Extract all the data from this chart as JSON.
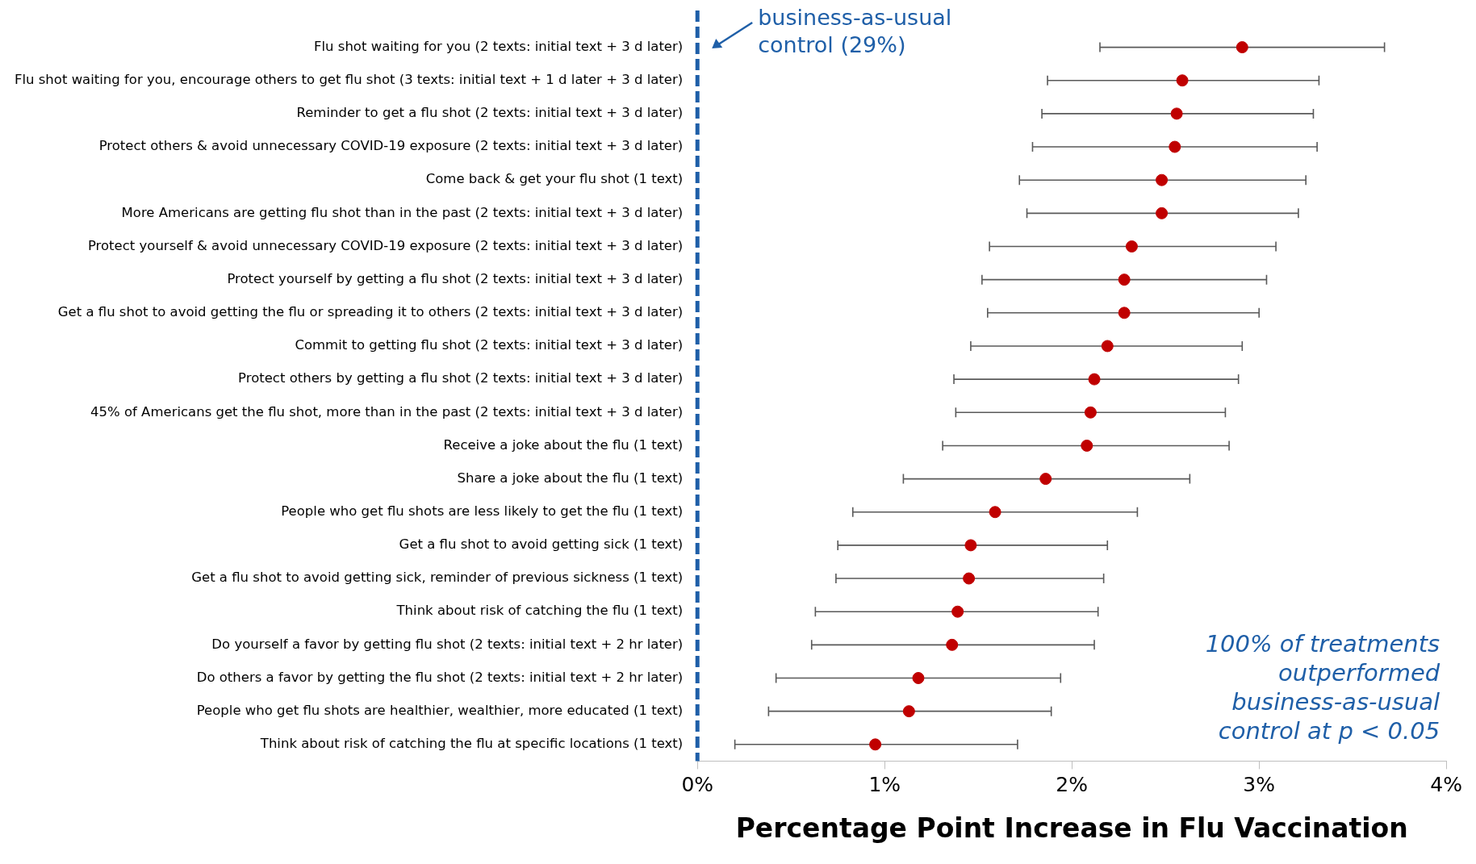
{
  "chart_data": {
    "type": "scatter",
    "orientation": "horizontal",
    "xlabel": "Percentage Point Increase in Flu Vaccination",
    "categories": [
      "Flu shot waiting for you (2 texts: initial text + 3 d later)",
      "Flu shot waiting for you, encourage others to get flu shot (3 texts: initial text + 1 d later + 3 d later)",
      "Reminder to get a flu shot (2 texts: initial text + 3 d later)",
      "Protect others & avoid unnecessary COVID-19 exposure (2 texts: initial text + 3 d later)",
      "Come back & get your flu shot (1 text)",
      "More Americans are getting flu shot than in the past (2 texts: initial text + 3 d later)",
      "Protect yourself & avoid unnecessary COVID-19 exposure (2 texts: initial text + 3 d later)",
      "Protect yourself by getting a flu shot (2 texts: initial text + 3 d later)",
      "Get a flu shot to avoid getting the flu or spreading it to others (2 texts: initial text + 3 d later)",
      "Commit to getting flu shot (2 texts: initial text + 3 d later)",
      "Protect others by getting a flu shot (2 texts: initial text + 3 d later)",
      "45% of Americans get the flu shot, more than in the past (2 texts: initial text + 3 d later)",
      "Receive a joke about the flu (1 text)",
      "Share a joke about the flu (1 text)",
      "People who get flu shots are less likely to get the flu (1 text)",
      "Get a flu shot to avoid getting sick (1 text)",
      "Get a flu shot to avoid getting sick, reminder of previous sickness (1 text)",
      "Think about risk of catching the flu (1 text)",
      "Do yourself a favor by getting flu shot (2 texts: initial text + 2 hr later)",
      "Do others a favor by getting the flu shot (2 texts: initial text + 2 hr later)",
      "People who get flu shots are healthier, wealthier, more educated (1 text)",
      "Think about risk of catching the flu at specific locations (1 text)"
    ],
    "series": [
      {
        "color": "#c00000",
        "values": [
          2.91,
          2.59,
          2.56,
          2.55,
          2.48,
          2.48,
          2.32,
          2.28,
          2.28,
          2.19,
          2.12,
          2.1,
          2.08,
          1.86,
          1.59,
          1.46,
          1.45,
          1.39,
          1.36,
          1.18,
          1.13,
          0.95
        ],
        "errors": [
          [
            2.15,
            3.67
          ],
          [
            1.87,
            3.32
          ],
          [
            1.84,
            3.29
          ],
          [
            1.79,
            3.31
          ],
          [
            1.72,
            3.25
          ],
          [
            1.76,
            3.21
          ],
          [
            1.56,
            3.09
          ],
          [
            1.52,
            3.04
          ],
          [
            1.55,
            3.0
          ],
          [
            1.46,
            2.91
          ],
          [
            1.37,
            2.89
          ],
          [
            1.38,
            2.82
          ],
          [
            1.31,
            2.84
          ],
          [
            1.1,
            2.63
          ],
          [
            0.83,
            2.35
          ],
          [
            0.75,
            2.19
          ],
          [
            0.74,
            2.17
          ],
          [
            0.63,
            2.14
          ],
          [
            0.61,
            2.12
          ],
          [
            0.42,
            1.94
          ],
          [
            0.38,
            1.89
          ],
          [
            0.2,
            1.71
          ]
        ]
      }
    ],
    "xlim": [
      0,
      4
    ],
    "xticks": [
      {
        "value": 0,
        "label": "0%"
      },
      {
        "value": 1,
        "label": "1%"
      },
      {
        "value": 2,
        "label": "2%"
      },
      {
        "value": 3,
        "label": "3%"
      },
      {
        "value": 4,
        "label": "4%"
      }
    ],
    "marker": "circle",
    "grid": false,
    "legend": false,
    "ref_lines": [
      {
        "axis": "x",
        "value": 0,
        "label": "business-as-usual control (29%)",
        "color": "#1f5fa8",
        "line_style": "dashed"
      }
    ],
    "annotations": [
      "100% of treatments outperformed business-as-usual control at p < 0.05"
    ]
  }
}
